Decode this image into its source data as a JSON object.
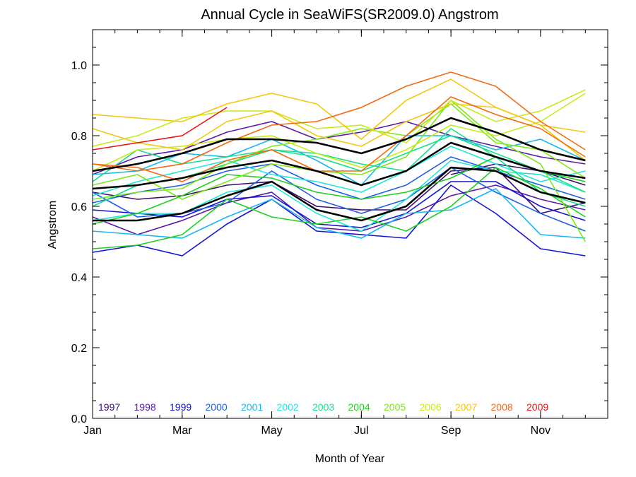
{
  "chart_data": {
    "type": "line",
    "title": "Annual Cycle in SeaWiFS(SR2009.0) Angstrom",
    "xlabel": "Month of Year",
    "ylabel": "Angstrom",
    "xlim": [
      1,
      12.5
    ],
    "ylim": [
      0,
      1.1
    ],
    "x_ticks": [
      {
        "value": 1,
        "label": "Jan"
      },
      {
        "value": 3,
        "label": "Mar"
      },
      {
        "value": 5,
        "label": "May"
      },
      {
        "value": 7,
        "label": "Jul"
      },
      {
        "value": 9,
        "label": "Sep"
      },
      {
        "value": 11,
        "label": "Nov"
      }
    ],
    "y_ticks": [
      {
        "value": 0.0,
        "label": "0.0"
      },
      {
        "value": 0.2,
        "label": "0.2"
      },
      {
        "value": 0.4,
        "label": "0.4"
      },
      {
        "value": 0.6,
        "label": "0.6"
      },
      {
        "value": 0.8,
        "label": "0.8"
      },
      {
        "value": 1.0,
        "label": "1.0"
      }
    ],
    "x_minor_step": 0.5,
    "y_minor_step": 0.05,
    "x": [
      1,
      2,
      3,
      4,
      5,
      6,
      7,
      8,
      9,
      10,
      11,
      12
    ],
    "legend_placement": "bottom, inside plot, horizontal",
    "legend": [
      {
        "label": "1997",
        "color": "#3b0f6f"
      },
      {
        "label": "1998",
        "color": "#5a1aa8"
      },
      {
        "label": "1999",
        "color": "#1414d2"
      },
      {
        "label": "2000",
        "color": "#1f5fe6"
      },
      {
        "label": "2001",
        "color": "#1ab8f0"
      },
      {
        "label": "2002",
        "color": "#22e6d8"
      },
      {
        "label": "2003",
        "color": "#18e08a"
      },
      {
        "label": "2004",
        "color": "#1ed11e"
      },
      {
        "label": "2005",
        "color": "#7de81a"
      },
      {
        "label": "2006",
        "color": "#c7ec1c"
      },
      {
        "label": "2007",
        "color": "#f2c811"
      },
      {
        "label": "2008",
        "color": "#f26a12"
      },
      {
        "label": "2009",
        "color": "#e81414"
      }
    ],
    "series": [
      {
        "color": "#3b0f6f",
        "values": [
          null,
          null,
          null,
          null,
          null,
          null,
          null,
          null,
          0.69,
          0.72,
          0.7,
          0.66
        ]
      },
      {
        "color": "#3b0f6f",
        "values": [
          0.64,
          0.62,
          0.63,
          0.66,
          0.67,
          0.6,
          0.59,
          0.59,
          0.7,
          0.71,
          0.58,
          0.61
        ]
      },
      {
        "color": "#5a1aa8",
        "values": [
          0.69,
          0.74,
          0.76,
          0.81,
          0.84,
          0.79,
          0.81,
          0.84,
          0.8,
          0.77,
          0.74,
          0.72
        ]
      },
      {
        "color": "#5a1aa8",
        "values": [
          0.57,
          0.52,
          0.56,
          0.61,
          0.64,
          0.54,
          0.53,
          0.57,
          0.63,
          0.66,
          0.62,
          0.59
        ]
      },
      {
        "color": "#1414d2",
        "values": [
          0.47,
          0.49,
          0.46,
          0.55,
          0.62,
          0.53,
          0.52,
          0.51,
          0.66,
          0.58,
          0.48,
          0.46
        ]
      },
      {
        "color": "#1414d2",
        "values": [
          0.59,
          0.58,
          0.57,
          0.62,
          0.63,
          0.55,
          0.54,
          0.58,
          0.67,
          0.67,
          0.6,
          0.56
        ]
      },
      {
        "color": "#1f5fe6",
        "values": [
          0.64,
          0.57,
          0.58,
          0.61,
          0.7,
          0.62,
          0.58,
          0.62,
          0.71,
          0.64,
          0.58,
          0.53
        ]
      },
      {
        "color": "#1f5fe6",
        "values": [
          0.61,
          0.64,
          0.66,
          0.7,
          0.72,
          0.66,
          0.62,
          0.66,
          0.74,
          0.7,
          0.66,
          0.62
        ]
      },
      {
        "color": "#1ab8f0",
        "values": [
          0.69,
          0.7,
          0.75,
          0.74,
          0.79,
          0.73,
          0.66,
          0.8,
          0.8,
          0.76,
          0.79,
          0.73
        ]
      },
      {
        "color": "#1ab8f0",
        "values": [
          0.53,
          0.52,
          0.51,
          0.57,
          0.62,
          0.54,
          0.51,
          0.58,
          0.59,
          0.65,
          0.52,
          0.51
        ]
      },
      {
        "color": "#22e6d8",
        "values": [
          0.56,
          0.58,
          0.58,
          0.64,
          0.66,
          0.58,
          0.53,
          0.62,
          0.73,
          0.7,
          0.69,
          0.64
        ]
      },
      {
        "color": "#22e6d8",
        "values": [
          0.63,
          0.67,
          0.7,
          0.73,
          0.69,
          0.67,
          0.64,
          0.7,
          0.77,
          0.72,
          0.67,
          0.7
        ]
      },
      {
        "color": "#18e08a",
        "values": [
          0.6,
          0.66,
          0.68,
          0.72,
          0.76,
          0.74,
          0.7,
          0.75,
          0.8,
          0.75,
          0.7,
          0.64
        ]
      },
      {
        "color": "#18e08a",
        "values": [
          0.67,
          0.76,
          0.72,
          0.74,
          0.76,
          0.75,
          0.72,
          0.7,
          0.82,
          0.74,
          0.64,
          0.6
        ]
      },
      {
        "color": "#1ed11e",
        "values": [
          0.48,
          0.49,
          0.52,
          0.62,
          0.57,
          0.55,
          0.57,
          0.53,
          0.6,
          0.71,
          0.65,
          0.57
        ]
      },
      {
        "color": "#1ed11e",
        "values": [
          0.55,
          0.58,
          0.63,
          0.69,
          0.68,
          0.64,
          0.62,
          0.64,
          0.68,
          0.74,
          0.7,
          0.67
        ]
      },
      {
        "color": "#7de81a",
        "values": [
          0.62,
          0.64,
          0.65,
          0.72,
          0.77,
          0.79,
          0.82,
          0.8,
          0.89,
          0.78,
          0.76,
          0.68
        ]
      },
      {
        "color": "#7de81a",
        "values": [
          0.66,
          0.69,
          0.62,
          0.67,
          0.72,
          0.7,
          0.69,
          0.74,
          0.9,
          0.79,
          0.72,
          0.5
        ]
      },
      {
        "color": "#c7ec1c",
        "values": [
          0.77,
          0.8,
          0.85,
          0.87,
          0.87,
          0.82,
          0.83,
          0.78,
          0.9,
          0.84,
          0.87,
          0.93
        ]
      },
      {
        "color": "#c7ec1c",
        "values": [
          0.7,
          0.76,
          0.77,
          0.79,
          0.8,
          0.75,
          0.71,
          0.76,
          0.83,
          0.8,
          0.84,
          0.92
        ]
      },
      {
        "color": "#f2c811",
        "values": [
          0.86,
          0.85,
          0.84,
          0.89,
          0.92,
          0.89,
          0.79,
          0.9,
          0.96,
          0.88,
          0.83,
          0.81
        ]
      },
      {
        "color": "#f2c811",
        "values": [
          0.82,
          0.78,
          0.76,
          0.84,
          0.87,
          0.8,
          0.77,
          0.84,
          0.89,
          0.88,
          0.83,
          0.73
        ]
      },
      {
        "color": "#f26a12",
        "values": [
          0.72,
          0.7,
          0.72,
          0.78,
          0.83,
          0.84,
          0.88,
          0.94,
          0.98,
          0.94,
          0.84,
          0.76
        ]
      },
      {
        "color": "#f26a12",
        "values": [
          0.72,
          0.71,
          0.67,
          0.73,
          0.76,
          0.7,
          0.7,
          0.8,
          0.91,
          0.86,
          0.82,
          0.74
        ]
      },
      {
        "color": "#e81414",
        "values": [
          0.76,
          0.78,
          0.8,
          0.88,
          null,
          null,
          null,
          null,
          null,
          null,
          null,
          null
        ]
      },
      {
        "color": "#000000",
        "width": 2.5,
        "values": [
          0.7,
          0.72,
          0.75,
          0.79,
          0.79,
          0.78,
          0.75,
          0.79,
          0.85,
          0.81,
          0.76,
          0.73
        ]
      },
      {
        "color": "#000000",
        "width": 2.5,
        "values": [
          0.65,
          0.66,
          0.68,
          0.71,
          0.73,
          0.7,
          0.66,
          0.7,
          0.78,
          0.74,
          0.7,
          0.68
        ]
      },
      {
        "color": "#000000",
        "width": 2.5,
        "values": [
          0.56,
          0.56,
          0.58,
          0.63,
          0.67,
          0.59,
          0.56,
          0.6,
          0.71,
          0.7,
          0.64,
          0.61
        ]
      }
    ]
  }
}
